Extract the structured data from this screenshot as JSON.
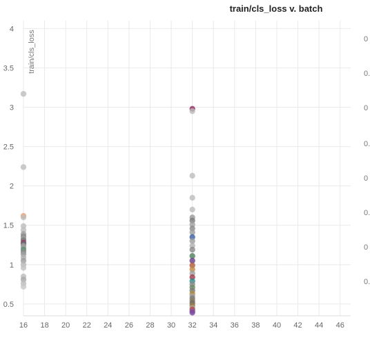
{
  "chart_data": {
    "type": "scatter",
    "title": "train/cls_loss v. batch",
    "xlabel": "",
    "ylabel": "train/cls_loss",
    "xlim": [
      16,
      47
    ],
    "ylim": [
      0.35,
      4.1
    ],
    "x_ticks": [
      16,
      18,
      20,
      22,
      24,
      26,
      28,
      30,
      32,
      34,
      36,
      38,
      40,
      42,
      44,
      46
    ],
    "y_ticks": [
      4,
      3.5,
      3,
      2.5,
      2,
      1.5,
      1,
      0.5
    ],
    "y_tick_labels": [
      "4",
      "3.5",
      "3",
      "2.5",
      "2",
      "1.5",
      "1",
      "0.5"
    ],
    "grid": true,
    "points": [
      {
        "x": 16,
        "y": 3.17,
        "color": "#bdbdbd"
      },
      {
        "x": 16,
        "y": 2.24,
        "color": "#bdbdbd"
      },
      {
        "x": 16,
        "y": 1.62,
        "color": "#f0a070"
      },
      {
        "x": 16,
        "y": 1.6,
        "color": "#bdbdbd"
      },
      {
        "x": 16,
        "y": 1.49,
        "color": "#bdbdbd"
      },
      {
        "x": 16,
        "y": 1.44,
        "color": "#bdbdbd"
      },
      {
        "x": 16,
        "y": 1.39,
        "color": "#9e9e9e"
      },
      {
        "x": 16,
        "y": 1.36,
        "color": "#8a8a8a"
      },
      {
        "x": 16,
        "y": 1.33,
        "color": "#9e9e9e"
      },
      {
        "x": 16,
        "y": 1.31,
        "color": "#7a7a7a"
      },
      {
        "x": 16,
        "y": 1.28,
        "color": "#8e3a66"
      },
      {
        "x": 16,
        "y": 1.26,
        "color": "#6a6a6a"
      },
      {
        "x": 16,
        "y": 1.24,
        "color": "#9e9e9e"
      },
      {
        "x": 16,
        "y": 1.22,
        "color": "#a0a0a0"
      },
      {
        "x": 16,
        "y": 1.19,
        "color": "#5c8e6e"
      },
      {
        "x": 16,
        "y": 1.16,
        "color": "#8a8a8a"
      },
      {
        "x": 16,
        "y": 1.13,
        "color": "#9e9e9e"
      },
      {
        "x": 16,
        "y": 1.09,
        "color": "#b0b0b0"
      },
      {
        "x": 16,
        "y": 1.05,
        "color": "#9e9e9e"
      },
      {
        "x": 16,
        "y": 1.0,
        "color": "#b8b8b8"
      },
      {
        "x": 16,
        "y": 0.96,
        "color": "#c2c2c2"
      },
      {
        "x": 16,
        "y": 0.85,
        "color": "#bdbdbd"
      },
      {
        "x": 16,
        "y": 0.81,
        "color": "#a8a8a8"
      },
      {
        "x": 16,
        "y": 0.76,
        "color": "#bdbdbd"
      },
      {
        "x": 16,
        "y": 0.72,
        "color": "#c8c8c8"
      },
      {
        "x": 32,
        "y": 2.98,
        "color": "#8e2a5a"
      },
      {
        "x": 32,
        "y": 2.95,
        "color": "#bdbdbd"
      },
      {
        "x": 32,
        "y": 2.13,
        "color": "#bdbdbd"
      },
      {
        "x": 32,
        "y": 1.85,
        "color": "#bdbdbd"
      },
      {
        "x": 32,
        "y": 1.7,
        "color": "#bdbdbd"
      },
      {
        "x": 32,
        "y": 1.6,
        "color": "#9a9a9a"
      },
      {
        "x": 32,
        "y": 1.56,
        "color": "#7a7a7a"
      },
      {
        "x": 32,
        "y": 1.51,
        "color": "#a0a0a0"
      },
      {
        "x": 32,
        "y": 1.46,
        "color": "#8a8a8a"
      },
      {
        "x": 32,
        "y": 1.41,
        "color": "#9e9e9e"
      },
      {
        "x": 32,
        "y": 1.35,
        "color": "#3a5ea0"
      },
      {
        "x": 32,
        "y": 1.3,
        "color": "#9e9e9e"
      },
      {
        "x": 32,
        "y": 1.24,
        "color": "#b0b0b0"
      },
      {
        "x": 32,
        "y": 1.19,
        "color": "#8a8a8a"
      },
      {
        "x": 32,
        "y": 1.11,
        "color": "#4e7d5c"
      },
      {
        "x": 32,
        "y": 1.05,
        "color": "#6a3d8a"
      },
      {
        "x": 32,
        "y": 0.99,
        "color": "#b05a3a"
      },
      {
        "x": 32,
        "y": 0.94,
        "color": "#c08a3e"
      },
      {
        "x": 32,
        "y": 0.89,
        "color": "#9e9e9e"
      },
      {
        "x": 32,
        "y": 0.84,
        "color": "#a03a4a"
      },
      {
        "x": 32,
        "y": 0.79,
        "color": "#2e8a8a"
      },
      {
        "x": 32,
        "y": 0.75,
        "color": "#8a8a8a"
      },
      {
        "x": 32,
        "y": 0.71,
        "color": "#6a8a5a"
      },
      {
        "x": 32,
        "y": 0.67,
        "color": "#7a7a7a"
      },
      {
        "x": 32,
        "y": 0.63,
        "color": "#b08a3a"
      },
      {
        "x": 32,
        "y": 0.6,
        "color": "#9e9e9e"
      },
      {
        "x": 32,
        "y": 0.57,
        "color": "#7a7a7a"
      },
      {
        "x": 32,
        "y": 0.54,
        "color": "#8a7a5a"
      },
      {
        "x": 32,
        "y": 0.51,
        "color": "#6a6a6a"
      },
      {
        "x": 32,
        "y": 0.48,
        "color": "#9a7a3a"
      },
      {
        "x": 32,
        "y": 0.45,
        "color": "#a8a8a8"
      },
      {
        "x": 32,
        "y": 0.43,
        "color": "#c04a3a"
      },
      {
        "x": 32,
        "y": 0.41,
        "color": "#8a5aa0"
      },
      {
        "x": 32,
        "y": 0.39,
        "color": "#7a4aa0"
      }
    ]
  },
  "right_edge_labels": [
    "0",
    "0.",
    "0",
    "0.",
    "0",
    "0.",
    "0",
    "0."
  ]
}
